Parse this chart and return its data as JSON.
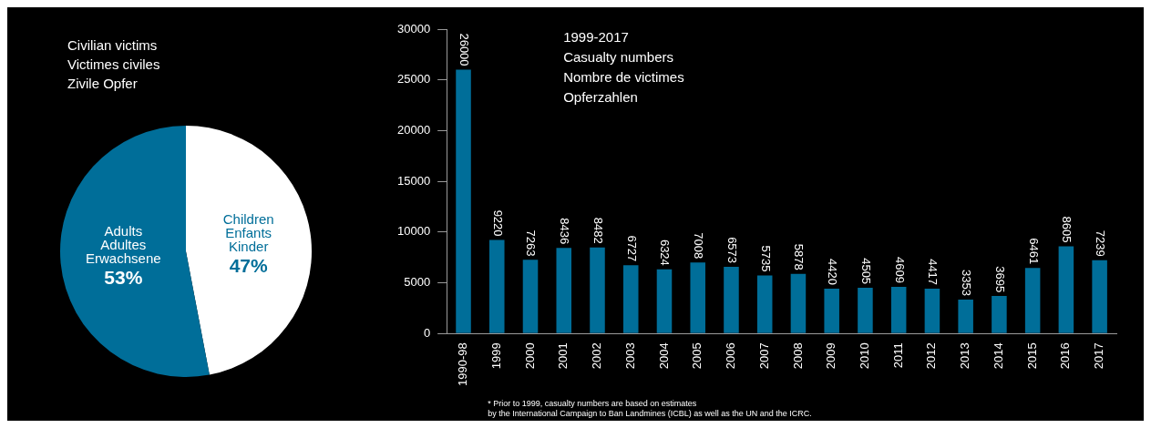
{
  "chart_data": [
    {
      "type": "pie",
      "title": "Civilian victims\nVictimes civiles\nZivile Opfer",
      "categories": [
        "Children\nEnfants\nKinder",
        "Adults\nAdultes\nErwachsene"
      ],
      "values": [
        47,
        53
      ],
      "colors": [
        "#ffffff",
        "#006e99"
      ],
      "value_labels": [
        "47%",
        "53%"
      ],
      "legend": false
    },
    {
      "type": "bar",
      "title": "1999-2017\nCasualty numbers\nNombre de victimes\nOpferzahlen",
      "categories": [
        "1990-98",
        "1999",
        "2000",
        "2001",
        "2002",
        "2003",
        "2004",
        "2005",
        "2006",
        "2007",
        "2008",
        "2009",
        "2010",
        "2011",
        "2012",
        "2013",
        "2014",
        "2015",
        "2016",
        "2017"
      ],
      "series": [
        {
          "color": "#006e99",
          "values": [
            26000,
            9220,
            7263,
            8436,
            8482,
            6727,
            6324,
            7008,
            6573,
            5735,
            5878,
            4420,
            4505,
            4609,
            4417,
            3353,
            3695,
            6461,
            8605,
            7239
          ]
        }
      ],
      "ylim": [
        0,
        30000
      ],
      "yticks": [
        0,
        5000,
        10000,
        15000,
        20000,
        25000,
        30000
      ],
      "grid": false,
      "legend": false,
      "data_labels": true,
      "annotations": [
        "* Prior to 1999, casualty numbers are based on estimates\nby the International Campaign to Ban Landmines (ICBL) as well as the UN and the ICRC."
      ]
    }
  ]
}
